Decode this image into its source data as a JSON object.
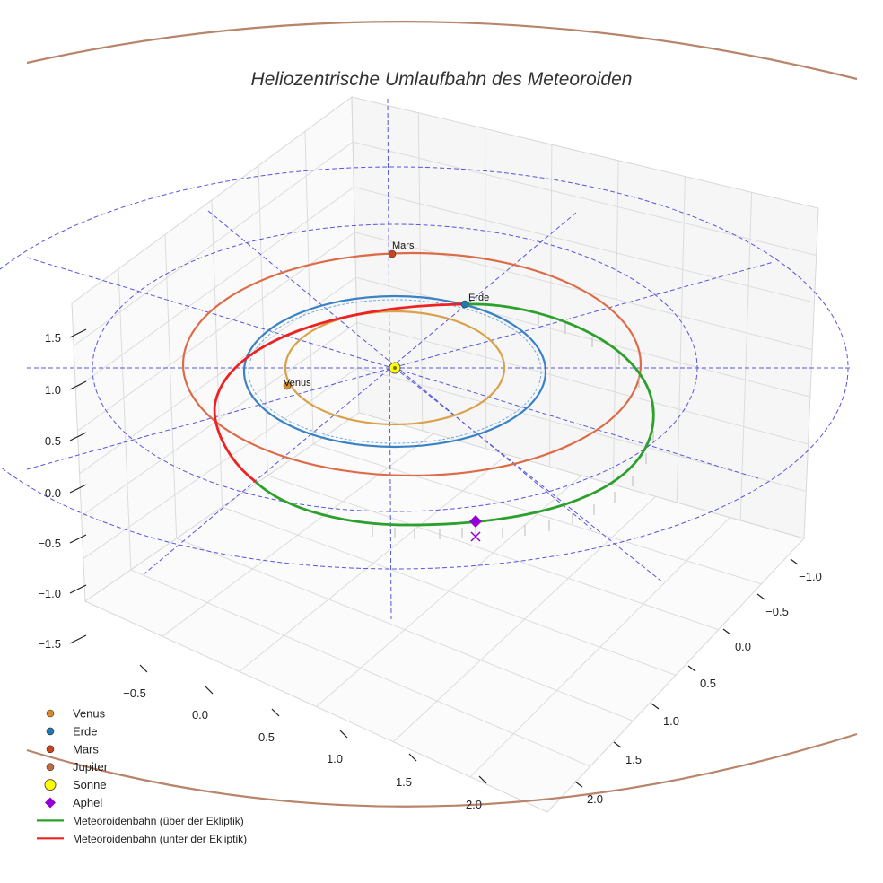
{
  "chart_data": {
    "type": "scatter",
    "title": "Heliozentrische Umlaufbahn des Meteoroiden",
    "axes": {
      "x_ticks": [
        "−0.5",
        "0.0",
        "0.5",
        "1.0",
        "1.5",
        "2.0"
      ],
      "y_ticks": [
        "−1.0",
        "−0.5",
        "0.0",
        "0.5",
        "1.0",
        "1.5",
        "2.0"
      ],
      "z_ticks": [
        "−1.5",
        "−1.0",
        "−0.5",
        "0.0",
        "0.5",
        "1.0",
        "1.5"
      ],
      "xlim": [
        -0.7,
        2.2
      ],
      "ylim": [
        -1.2,
        2.2
      ],
      "zlim": [
        -1.6,
        1.9
      ]
    },
    "orbits": [
      {
        "name": "Venus",
        "radius_au": 0.72,
        "color": "#d9a24a"
      },
      {
        "name": "Erde",
        "radius_au": 1.0,
        "color": "#3b82c4"
      },
      {
        "name": "Mars",
        "radius_au": 1.52,
        "color": "#dd6b48"
      },
      {
        "name": "Jupiter",
        "radius_au": 5.2,
        "color": "#b8846a"
      }
    ],
    "planets": [
      {
        "name": "Venus",
        "label": "Venus",
        "color": "#d98a2b"
      },
      {
        "name": "Erde",
        "label": "Erde",
        "color": "#1f77b4"
      },
      {
        "name": "Mars",
        "label": "Mars",
        "color": "#c8451f"
      },
      {
        "name": "Jupiter",
        "label": "",
        "color": "#c06b3a"
      }
    ],
    "sun": {
      "name": "Sonne",
      "color": "#ffff00"
    },
    "aphel": {
      "name": "Aphel",
      "color": "#9400d3"
    },
    "meteoroid": {
      "semi_major_axis_au": 1.52,
      "aphelion_au": 2.0,
      "perihelion_au": 1.0,
      "above_color": "#2ca02c",
      "below_color": "#ee2222",
      "above_label": "Meteoroidenbahn (über der Ekliptik)",
      "below_label": "Meteoroidenbahn (unter der Ekliptik)"
    },
    "legend": {
      "position": "bottom-left",
      "entries": [
        {
          "label": "Venus",
          "marker": "circle",
          "color": "#d98a2b"
        },
        {
          "label": "Erde",
          "marker": "circle",
          "color": "#1f77b4"
        },
        {
          "label": "Mars",
          "marker": "circle",
          "color": "#c8451f"
        },
        {
          "label": "Jupiter",
          "marker": "circle",
          "color": "#c06b3a"
        },
        {
          "label": "Sonne",
          "marker": "big-circle",
          "color": "#ffff00"
        },
        {
          "label": "Aphel",
          "marker": "diamond",
          "color": "#9400d3"
        },
        {
          "label": "Meteoroidenbahn (über der Ekliptik)",
          "marker": "line",
          "color": "#2ca02c"
        },
        {
          "label": "Meteoroidenbahn (unter der Ekliptik)",
          "marker": "line",
          "color": "#ee2222"
        }
      ]
    }
  }
}
